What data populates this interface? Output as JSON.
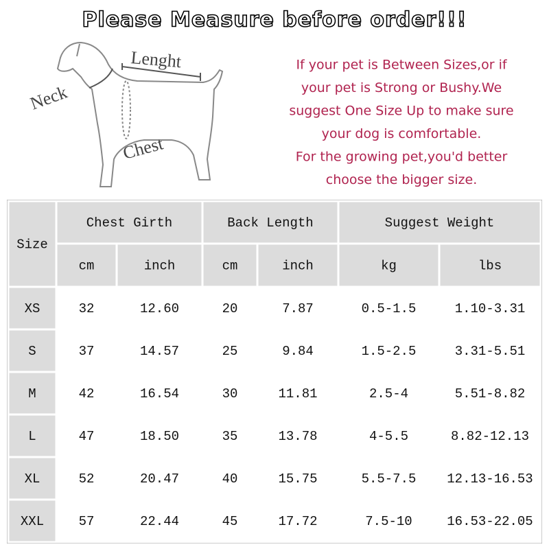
{
  "header": {
    "title": "Please Measure before order!!!"
  },
  "diagram": {
    "labels": {
      "length": "Lenght",
      "neck": "Neck",
      "chest": "Chest"
    }
  },
  "notice": {
    "lines": [
      "If your pet is Between Sizes,or if",
      "your pet is Strong or Bushy.We",
      "suggest One Size Up to make sure",
      "your dog is comfortable.",
      "For the growing pet,you'd better",
      "choose the bigger size."
    ]
  },
  "table": {
    "size_header": "Size",
    "groups": [
      "Chest Girth",
      "Back Length",
      "Suggest Weight"
    ],
    "units": [
      "cm",
      "inch",
      "cm",
      "inch",
      "kg",
      "lbs"
    ],
    "rows": [
      [
        "XS",
        "32",
        "12.60",
        "20",
        "7.87",
        "0.5-1.5",
        "1.10-3.31"
      ],
      [
        "S",
        "37",
        "14.57",
        "25",
        "9.84",
        "1.5-2.5",
        "3.31-5.51"
      ],
      [
        "M",
        "42",
        "16.54",
        "30",
        "11.81",
        "2.5-4",
        "5.51-8.82"
      ],
      [
        "L",
        "47",
        "18.50",
        "35",
        "13.78",
        "4-5.5",
        "8.82-12.13"
      ],
      [
        "XL",
        "52",
        "20.47",
        "40",
        "15.75",
        "5.5-7.5",
        "12.13-16.53"
      ],
      [
        "XXL",
        "57",
        "22.44",
        "45",
        "17.72",
        "7.5-10",
        "16.53-22.05"
      ]
    ]
  }
}
